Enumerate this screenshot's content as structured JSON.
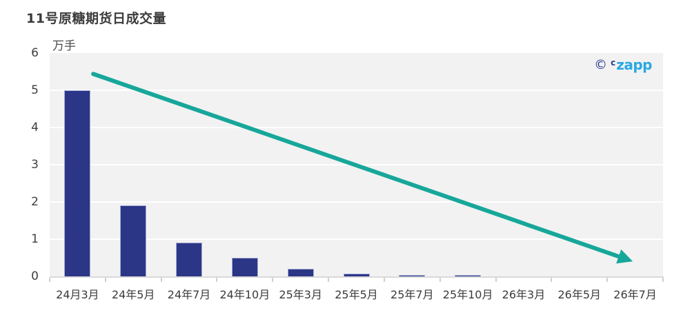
{
  "chart_data": {
    "type": "bar",
    "title": "11号原糖期货日成交量",
    "unit_label": "万手",
    "categories": [
      "24月3月",
      "24年5月",
      "24年7月",
      "24年10月",
      "25年3月",
      "25年5月",
      "25年7月",
      "25年10月",
      "26年3月",
      "26年5月",
      "26年7月"
    ],
    "values": [
      5.0,
      1.9,
      0.9,
      0.5,
      0.2,
      0.08,
      0.04,
      0.04,
      0,
      0,
      0
    ],
    "xlabel": "",
    "ylabel": "万手",
    "ylim": [
      0,
      6
    ],
    "yticks": [
      0,
      1,
      2,
      3,
      4,
      5,
      6
    ],
    "grid": "horizontal-white-on-gray-panel",
    "legend": "none",
    "trend_arrow": {
      "x1_frac": 0.071,
      "y1_value": 5.44,
      "x2_frac": 0.946,
      "y2_value": 0.43,
      "direction": "down",
      "color": "#17a79a"
    }
  },
  "watermark": {
    "copyright": "©",
    "prefix": "c",
    "brand": "zapp"
  },
  "colors": {
    "bar": "#2b3687",
    "bar_border": "#a6abd6",
    "arrow": "#17a79a",
    "panel_bg": "#f2f2f2",
    "gridline": "#ffffff",
    "axis_line": "#d9d9d9",
    "title_text": "#3b3b3b",
    "tick_text": "#3f3f3f",
    "brand_navy": "#2d3a8c",
    "brand_blue": "#29a9e2"
  }
}
